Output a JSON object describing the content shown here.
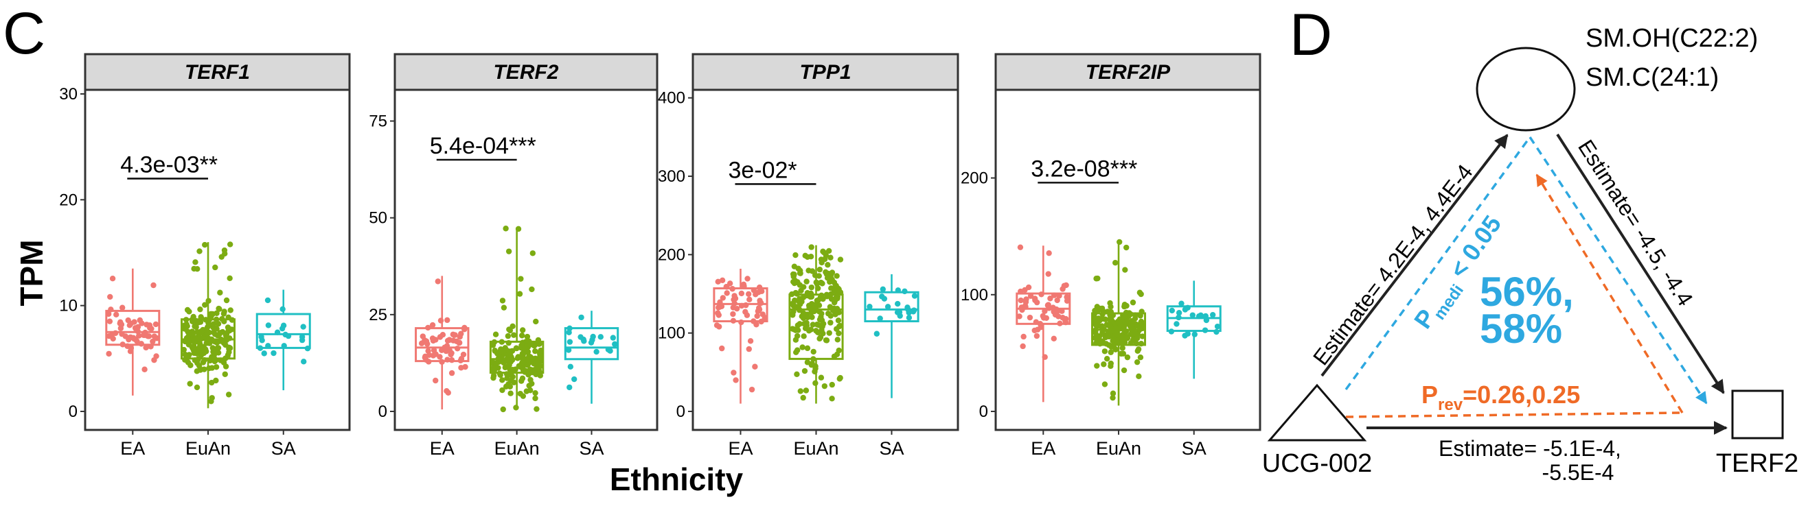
{
  "panel_c": {
    "letter": "C",
    "y_title": "TPM",
    "x_title": "Ethnicity"
  },
  "panel_d": {
    "letter": "D",
    "mediator_labels": [
      "SM.OH(C22:2)",
      "SM.C(24:1)"
    ],
    "exposure_label": "UCG-002",
    "outcome_label": "TERF2",
    "estimate_left": "Estimate= 4.2E-4, 4.4E-4",
    "estimate_right": "Estimate= -4.5, -4.4",
    "estimate_bottom_1": "Estimate= -5.1E-4,",
    "estimate_bottom_2": "-5.5E-4",
    "p_medi_main": "P",
    "p_medi_sub": "medi",
    "p_medi_rest": " < 0.05",
    "proportion_1": "56%,",
    "proportion_2": "58%",
    "p_rev_main": "P",
    "p_rev_sub": "rev",
    "p_rev_rest": "=0.26,0.25",
    "colors": {
      "mediation": "#2ea8e0",
      "reverse": "#ef6a26",
      "direct": "#222222"
    }
  },
  "chart_data": [
    {
      "type": "box",
      "title": "TERF1",
      "xlabel": "Ethnicity",
      "ylabel": "TPM",
      "categories": [
        "EA",
        "EuAn",
        "SA"
      ],
      "ylim": [
        0,
        30
      ],
      "yticks": [
        0,
        10,
        20,
        30
      ],
      "colors": [
        "#f07872",
        "#7cac12",
        "#1fbfc3"
      ],
      "boxes": [
        {
          "min": 1.5,
          "q1": 6.3,
          "median": 7.5,
          "q3": 9.5,
          "max": 13.5,
          "n": 60
        },
        {
          "min": 0.3,
          "q1": 5.0,
          "median": 6.8,
          "q3": 8.7,
          "max": 16.0,
          "n": 200
        },
        {
          "min": 2.0,
          "q1": 6.0,
          "median": 7.3,
          "q3": 9.2,
          "max": 11.5,
          "n": 20
        }
      ],
      "significance": {
        "label": "4.3e-03**",
        "between": [
          "EA",
          "EuAn"
        ],
        "y": 22
      }
    },
    {
      "type": "box",
      "title": "TERF2",
      "xlabel": "Ethnicity",
      "ylabel": "TPM",
      "categories": [
        "EA",
        "EuAn",
        "SA"
      ],
      "ylim": [
        0,
        82
      ],
      "yticks": [
        0,
        25,
        50,
        75
      ],
      "colors": [
        "#f07872",
        "#7cac12",
        "#1fbfc3"
      ],
      "boxes": [
        {
          "min": 0.5,
          "q1": 13,
          "median": 16.5,
          "q3": 21.5,
          "max": 35,
          "n": 60
        },
        {
          "min": 0.5,
          "q1": 10,
          "median": 13.5,
          "q3": 18,
          "max": 47.5,
          "n": 200
        },
        {
          "min": 2.0,
          "q1": 13.5,
          "median": 16.5,
          "q3": 21.5,
          "max": 26,
          "n": 20
        }
      ],
      "significance": {
        "label": "5.4e-04***",
        "between": [
          "EA",
          "EuAn"
        ],
        "y": 65
      }
    },
    {
      "type": "box",
      "title": "TPP1",
      "xlabel": "Ethnicity",
      "ylabel": "TPM",
      "categories": [
        "EA",
        "EuAn",
        "SA"
      ],
      "ylim": [
        0,
        405
      ],
      "yticks": [
        0,
        100,
        200,
        300,
        400
      ],
      "colors": [
        "#f07872",
        "#7cac12",
        "#1fbfc3"
      ],
      "boxes": [
        {
          "min": 10,
          "q1": 115,
          "median": 137,
          "q3": 157,
          "max": 182,
          "n": 60
        },
        {
          "min": 10,
          "q1": 67,
          "median": 130,
          "q3": 149,
          "max": 212,
          "n": 200
        },
        {
          "min": 17,
          "q1": 115,
          "median": 130,
          "q3": 152,
          "max": 175,
          "n": 20
        }
      ],
      "significance": {
        "label": "3e-02*",
        "between": [
          "EA",
          "EuAn"
        ],
        "y": 290
      }
    },
    {
      "type": "box",
      "title": "TERF2IP",
      "xlabel": "Ethnicity",
      "ylabel": "TPM",
      "categories": [
        "EA",
        "EuAn",
        "SA"
      ],
      "ylim": [
        0,
        272
      ],
      "yticks": [
        0,
        100,
        200
      ],
      "colors": [
        "#f07872",
        "#7cac12",
        "#1fbfc3"
      ],
      "boxes": [
        {
          "min": 8,
          "q1": 75,
          "median": 88,
          "q3": 101,
          "max": 142,
          "n": 60
        },
        {
          "min": 5,
          "q1": 57,
          "median": 70,
          "q3": 84,
          "max": 146,
          "n": 200
        },
        {
          "min": 28,
          "q1": 69,
          "median": 80,
          "q3": 90,
          "max": 112,
          "n": 20
        }
      ],
      "significance": {
        "label": "3.2e-08***",
        "between": [
          "EA",
          "EuAn"
        ],
        "y": 196
      }
    }
  ]
}
